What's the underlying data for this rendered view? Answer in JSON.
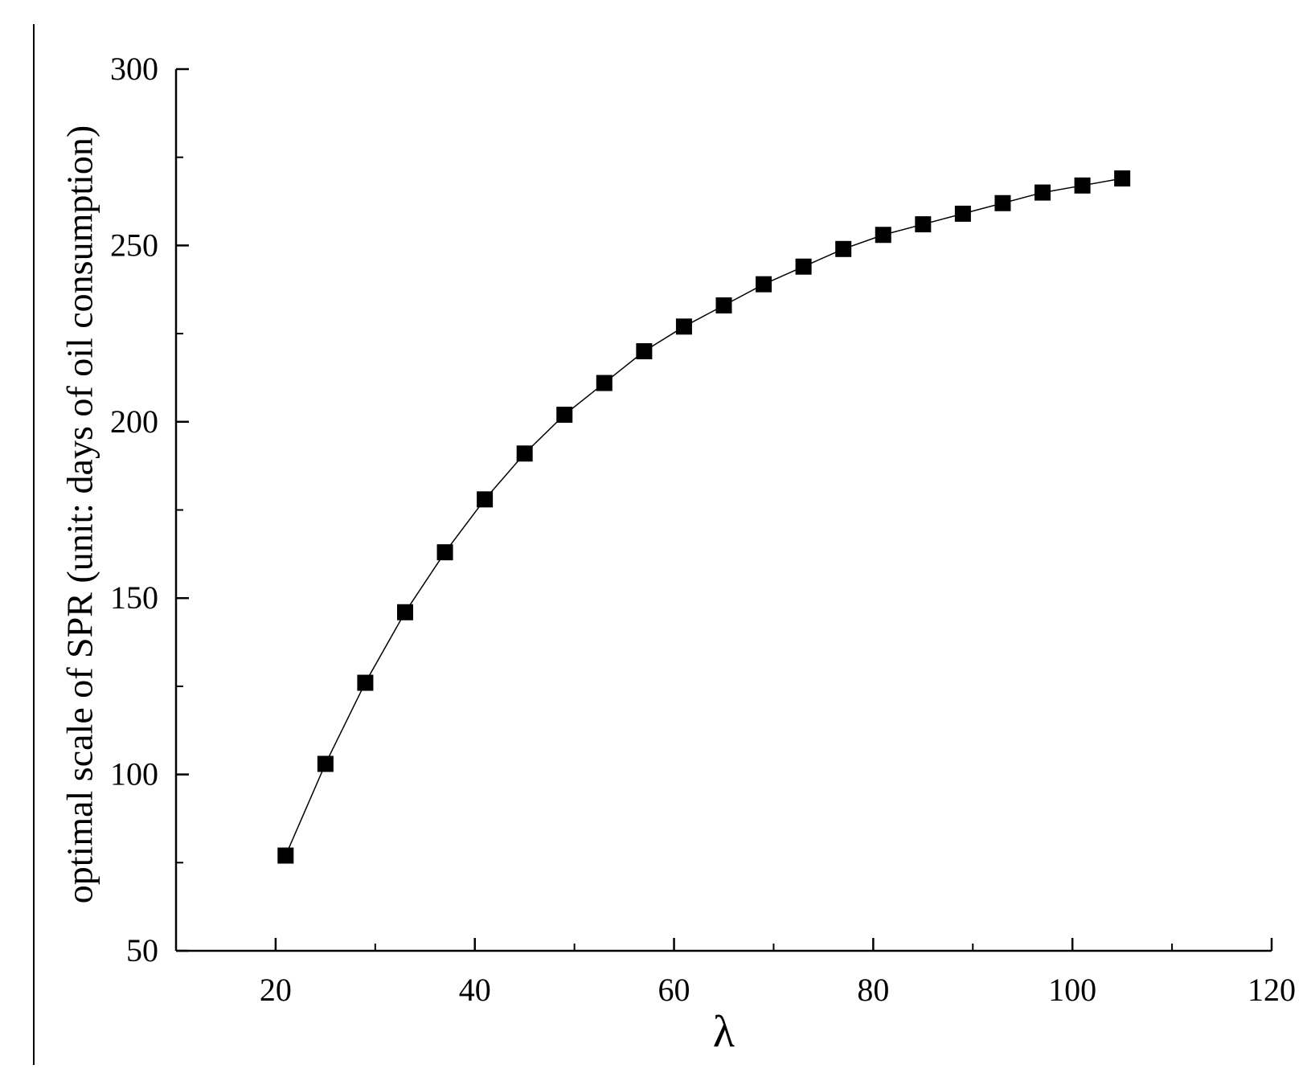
{
  "chart_data": {
    "type": "line",
    "title": "",
    "xlabel": "λ",
    "ylabel": "optimal scale of SPR (unit: days of oil consumption)",
    "xlim": [
      10,
      120
    ],
    "ylim": [
      50,
      300
    ],
    "x_ticks": [
      20,
      40,
      60,
      80,
      100,
      120
    ],
    "y_ticks": [
      50,
      100,
      150,
      200,
      250,
      300
    ],
    "x_tick_labels": [
      "20",
      "40",
      "60",
      "80",
      "100",
      "120"
    ],
    "y_tick_labels": [
      "50",
      "100",
      "150",
      "200",
      "250",
      "300"
    ],
    "grid": false,
    "marker": "square",
    "colors": {
      "line": "#000000",
      "marker": "#000000",
      "axis": "#000000"
    },
    "series": [
      {
        "x": [
          21,
          25,
          29,
          33,
          37,
          41,
          45,
          49,
          53,
          57,
          61,
          65,
          69,
          73,
          77,
          81,
          85,
          89,
          93,
          97,
          101,
          105
        ],
        "values": [
          77,
          103,
          126,
          146,
          163,
          178,
          191,
          202,
          211,
          220,
          227,
          233,
          239,
          244,
          249,
          253,
          256,
          259,
          262,
          265,
          267,
          269
        ]
      }
    ]
  }
}
